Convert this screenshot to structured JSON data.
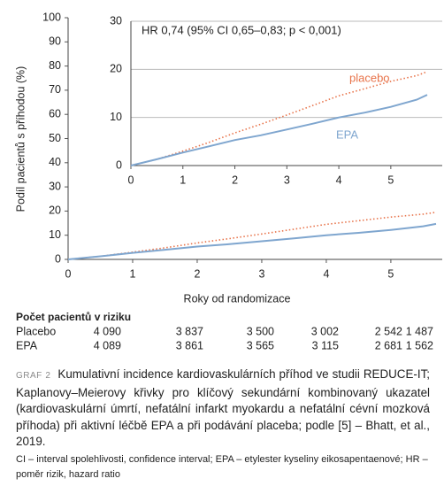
{
  "chart_data": [
    {
      "type": "line",
      "y_label": "Podíl pacientů s příhodou (%)",
      "x_label": "Roky od randomizace",
      "x": [
        0,
        0.5,
        1,
        1.5,
        2,
        2.5,
        3,
        3.5,
        4,
        4.5,
        5,
        5.5,
        5.7
      ],
      "series": [
        {
          "color": "#e8734a",
          "style": "dotted",
          "values": [
            0,
            1.3,
            3,
            4.8,
            6.8,
            8.6,
            10.5,
            12.5,
            14.5,
            16,
            17.5,
            18.7,
            19.5
          ]
        },
        {
          "color": "#7fa6cf",
          "style": "solid",
          "values": [
            0,
            1.3,
            2.7,
            4,
            5.3,
            6.3,
            7.5,
            8.7,
            10,
            11,
            12.2,
            13.7,
            14.7
          ]
        }
      ],
      "xlim": [
        0,
        5.7
      ],
      "xticks": [
        0,
        1,
        2,
        3,
        4,
        5
      ],
      "ylim": [
        0,
        100
      ],
      "yticks": [
        0,
        10,
        20,
        30,
        40,
        50,
        60,
        70,
        80,
        90,
        100
      ],
      "grid": false
    },
    {
      "type": "line",
      "annotation": "HR 0,74 (95% CI 0,65–0,83; p < 0,001)",
      "x": [
        0,
        0.5,
        1,
        1.5,
        2,
        2.5,
        3,
        3.5,
        4,
        4.5,
        5,
        5.5,
        5.7
      ],
      "series": [
        {
          "name": "placebo",
          "color": "#e8734a",
          "style": "dotted",
          "values": [
            0,
            1.3,
            3,
            4.8,
            6.8,
            8.6,
            10.5,
            12.5,
            14.5,
            16,
            17.5,
            18.7,
            19.5
          ]
        },
        {
          "name": "EPA",
          "color": "#7fa6cf",
          "style": "solid",
          "values": [
            0,
            1.3,
            2.7,
            4,
            5.3,
            6.3,
            7.5,
            8.7,
            10,
            11,
            12.2,
            13.7,
            14.7
          ]
        }
      ],
      "xlim": [
        0,
        5.7
      ],
      "xticks": [
        0,
        1,
        2,
        3,
        4,
        5
      ],
      "ylim": [
        0,
        30
      ],
      "yticks": [
        0,
        10,
        20,
        30
      ],
      "grid": true
    }
  ],
  "risk_table": {
    "title": "Počet pacientů v riziku",
    "rows": [
      {
        "label": "Placebo",
        "values": [
          "4 090",
          "3 837",
          "3 500",
          "3 002",
          "2 542",
          "1 487"
        ]
      },
      {
        "label": "EPA",
        "values": [
          "4 089",
          "3 861",
          "3 565",
          "3 115",
          "2 681",
          "1 562"
        ]
      }
    ]
  },
  "caption": {
    "label": "GRAF 2",
    "text": "Kumulativní incidence kardiovaskulárních příhod ve studii REDUCE-IT; Kaplanovy–Meierovy křivky pro klíčový sekundární kombinovaný ukazatel (kardiovaskulární úmrtí, nefatální infarkt myokardu a nefatální cévní mozková příhoda) při aktivní léčbě EPA a při podávání placeba; podle [5] – Bhatt, et al., 2019.",
    "footnote": "CI – interval spolehlivosti, confidence interval; EPA – etylester kyseliny eikosapentaenové; HR – poměr rizik, hazard ratio"
  }
}
